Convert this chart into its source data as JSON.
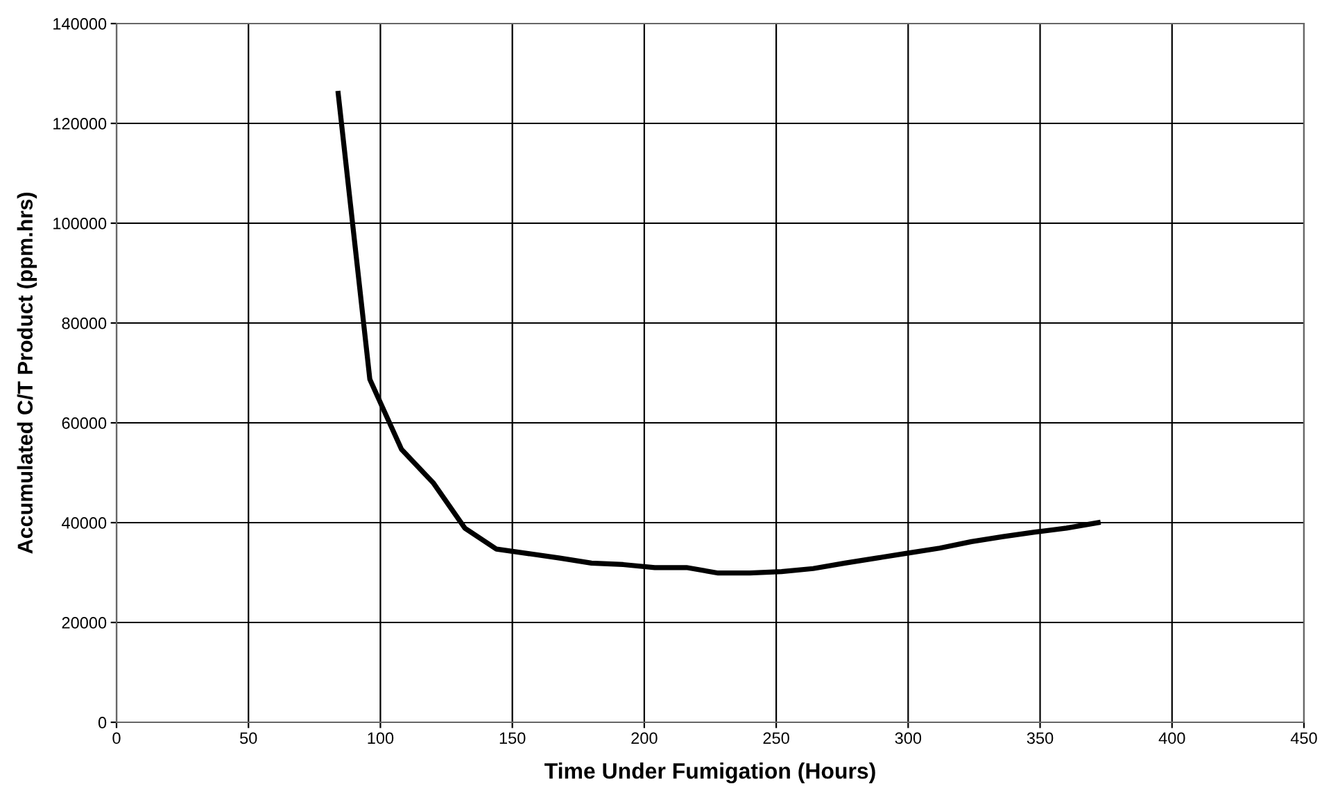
{
  "chart_data": {
    "type": "line",
    "xlabel": "Time Under Fumigation (Hours)",
    "ylabel": "Accumulated C/T Product (ppm.hrs)",
    "series": [
      {
        "color": "#000000",
        "x": [
          84,
          96,
          108,
          120,
          132,
          144,
          156,
          168,
          180,
          192,
          204,
          216,
          228,
          240,
          252,
          264,
          276,
          288,
          300,
          312,
          324,
          336,
          348,
          360,
          372
        ],
        "values": [
          126000,
          68700,
          54700,
          48000,
          38900,
          34700,
          33800,
          32900,
          31900,
          31600,
          31000,
          31000,
          29900,
          29900,
          30200,
          30800,
          31900,
          32900,
          33900,
          34900,
          36200,
          37200,
          38100,
          38900,
          40000
        ]
      }
    ],
    "xlim": [
      0,
      450
    ],
    "xticks": [
      0,
      50,
      100,
      150,
      200,
      250,
      300,
      350,
      400,
      450
    ],
    "ylim": [
      0,
      140000
    ],
    "yticks": [
      0,
      20000,
      40000,
      60000,
      80000,
      100000,
      120000,
      140000
    ],
    "grid": true,
    "legend": false,
    "marker": "none",
    "line_style": "solid"
  }
}
